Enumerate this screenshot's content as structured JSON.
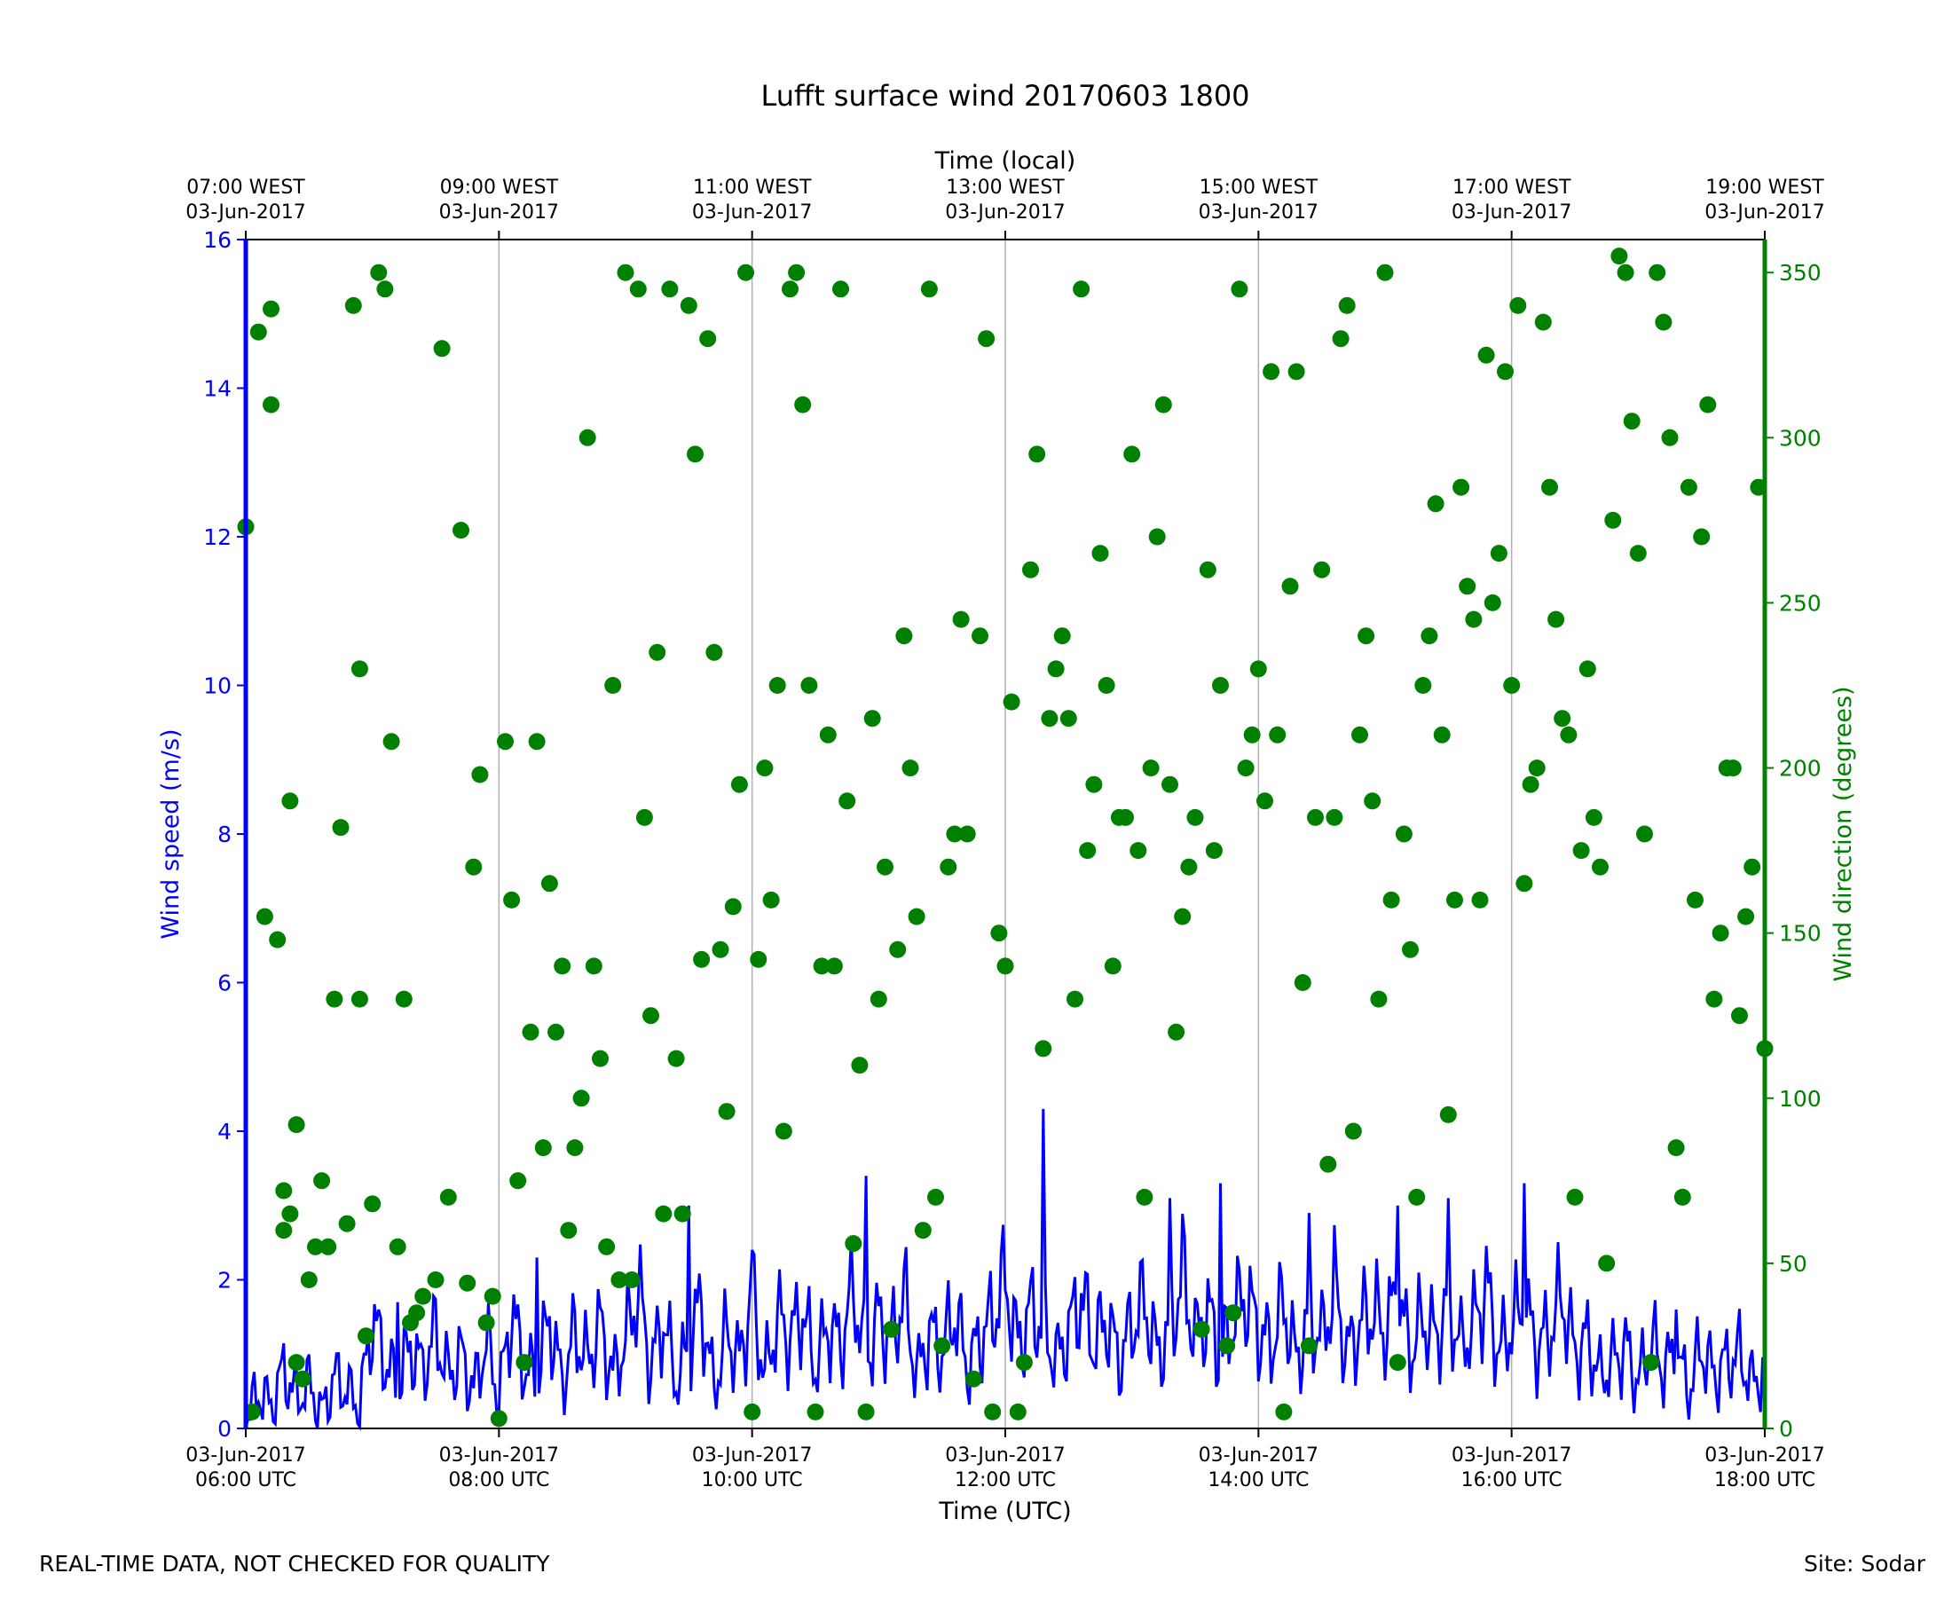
{
  "chart_data": {
    "type": "line+scatter",
    "title": "Lufft surface wind 20170603 1800",
    "xlabel_bottom": "Time (UTC)",
    "xlabel_top": "Time (local)",
    "ylabel_left": "Wind speed (m/s)",
    "ylabel_right": "Wind direction (degrees)",
    "xlim_hours_utc": [
      6.0,
      18.0
    ],
    "ylim_left": [
      0,
      16
    ],
    "ylim_right": [
      0,
      360
    ],
    "yticks_left": [
      0,
      2,
      4,
      6,
      8,
      10,
      12,
      14,
      16
    ],
    "yticks_right": [
      0,
      50,
      100,
      150,
      200,
      250,
      300,
      350
    ],
    "grid": "vertical at 2-hour ticks",
    "bottom_ticks": [
      {
        "hour": 6,
        "date": "03-Jun-2017",
        "time": "06:00 UTC"
      },
      {
        "hour": 8,
        "date": "03-Jun-2017",
        "time": "08:00 UTC"
      },
      {
        "hour": 10,
        "date": "03-Jun-2017",
        "time": "10:00 UTC"
      },
      {
        "hour": 12,
        "date": "03-Jun-2017",
        "time": "12:00 UTC"
      },
      {
        "hour": 14,
        "date": "03-Jun-2017",
        "time": "14:00 UTC"
      },
      {
        "hour": 16,
        "date": "03-Jun-2017",
        "time": "16:00 UTC"
      },
      {
        "hour": 18,
        "date": "03-Jun-2017",
        "time": "18:00 UTC"
      }
    ],
    "top_ticks": [
      {
        "hour": 6,
        "time": "07:00 WEST",
        "date": "03-Jun-2017"
      },
      {
        "hour": 8,
        "time": "09:00 WEST",
        "date": "03-Jun-2017"
      },
      {
        "hour": 10,
        "time": "11:00 WEST",
        "date": "03-Jun-2017"
      },
      {
        "hour": 12,
        "time": "13:00 WEST",
        "date": "03-Jun-2017"
      },
      {
        "hour": 14,
        "time": "15:00 WEST",
        "date": "03-Jun-2017"
      },
      {
        "hour": 16,
        "time": "17:00 WEST",
        "date": "03-Jun-2017"
      },
      {
        "hour": 18,
        "time": "19:00 WEST",
        "date": "03-Jun-2017"
      }
    ],
    "series": [
      {
        "kind": "line",
        "axis": "left",
        "color": "#0000ff",
        "x_hours_utc": [
          6.0,
          6.1,
          6.2,
          6.3,
          6.4,
          6.5,
          6.6,
          6.7,
          6.8,
          6.9,
          7.0,
          7.1,
          7.2,
          7.3,
          7.4,
          7.5,
          7.6,
          7.7,
          7.8,
          7.9,
          8.0,
          8.1,
          8.2,
          8.3,
          8.4,
          8.5,
          8.6,
          8.7,
          8.8,
          8.9,
          9.0,
          9.1,
          9.2,
          9.3,
          9.4,
          9.5,
          9.6,
          9.7,
          9.8,
          9.9,
          10.0,
          10.1,
          10.2,
          10.3,
          10.4,
          10.5,
          10.6,
          10.7,
          10.8,
          10.9,
          11.0,
          11.1,
          11.2,
          11.3,
          11.4,
          11.5,
          11.6,
          11.7,
          11.8,
          11.9,
          12.0,
          12.1,
          12.2,
          12.3,
          12.4,
          12.5,
          12.6,
          12.7,
          12.8,
          12.9,
          13.0,
          13.1,
          13.2,
          13.3,
          13.4,
          13.5,
          13.6,
          13.7,
          13.8,
          13.9,
          14.0,
          14.1,
          14.2,
          14.3,
          14.4,
          14.5,
          14.6,
          14.7,
          14.8,
          14.9,
          15.0,
          15.1,
          15.2,
          15.3,
          15.4,
          15.5,
          15.6,
          15.7,
          15.8,
          15.9,
          16.0,
          16.1,
          16.2,
          16.3,
          16.4,
          16.5,
          16.6,
          16.7,
          16.8,
          16.9,
          17.0,
          17.1,
          17.2,
          17.3,
          17.4,
          17.5,
          17.6,
          17.7,
          17.8,
          17.9,
          18.0
        ],
        "values": [
          0.1,
          0.5,
          0.3,
          0.8,
          0.4,
          0.6,
          0.2,
          0.7,
          0.5,
          0.3,
          1.5,
          0.9,
          0.6,
          1.1,
          0.8,
          1.3,
          0.7,
          1.0,
          0.5,
          1.2,
          0.4,
          1.6,
          0.8,
          0.7,
          1.5,
          0.6,
          1.3,
          0.9,
          1.4,
          0.7,
          1.2,
          1.9,
          0.8,
          1.5,
          0.6,
          1.1,
          1.7,
          0.5,
          1.3,
          0.9,
          1.8,
          0.7,
          1.5,
          1.2,
          1.6,
          0.8,
          1.4,
          1.1,
          1.9,
          0.9,
          1.5,
          1.2,
          1.8,
          0.7,
          1.3,
          1.0,
          1.6,
          0.8,
          1.2,
          1.5,
          2.0,
          1.1,
          1.6,
          1.4,
          0.9,
          1.3,
          1.8,
          1.1,
          1.5,
          0.9,
          1.4,
          1.7,
          1.0,
          1.3,
          2.1,
          1.2,
          1.6,
          0.9,
          1.5,
          1.8,
          1.3,
          1.1,
          1.7,
          0.9,
          1.5,
          1.2,
          1.9,
          1.0,
          1.4,
          1.6,
          1.3,
          1.8,
          1.0,
          1.5,
          1.2,
          1.7,
          1.1,
          1.4,
          1.9,
          1.0,
          1.4,
          1.6,
          1.1,
          1.3,
          1.8,
          1.0,
          1.2,
          0.7,
          0.9,
          1.1,
          0.6,
          1.2,
          0.8,
          1.0,
          0.5,
          1.1,
          0.7,
          0.9,
          1.0,
          0.6,
          0.8
        ],
        "peaks": [
          [
            7.2,
            1.7
          ],
          [
            8.3,
            2.3
          ],
          [
            9.5,
            3.0
          ],
          [
            10.0,
            2.4
          ],
          [
            10.9,
            3.4
          ],
          [
            12.3,
            4.3
          ],
          [
            13.3,
            3.1
          ],
          [
            13.7,
            3.3
          ],
          [
            14.4,
            2.9
          ],
          [
            15.1,
            3.0
          ],
          [
            15.5,
            3.1
          ],
          [
            16.1,
            3.3
          ],
          [
            17.3,
            1.6
          ]
        ]
      },
      {
        "kind": "scatter",
        "axis": "right",
        "color": "#008000",
        "x_hours_utc": [
          6.0,
          6.05,
          6.1,
          6.15,
          6.2,
          6.2,
          6.25,
          6.3,
          6.3,
          6.35,
          6.35,
          6.4,
          6.4,
          6.45,
          6.5,
          6.55,
          6.6,
          6.65,
          6.7,
          6.75,
          6.8,
          6.85,
          6.9,
          6.9,
          6.95,
          7.0,
          7.05,
          7.1,
          7.15,
          7.2,
          7.25,
          7.3,
          7.35,
          7.4,
          7.5,
          7.55,
          7.6,
          7.7,
          7.75,
          7.8,
          7.85,
          7.9,
          7.95,
          8.0,
          8.05,
          8.1,
          8.15,
          8.2,
          8.25,
          8.3,
          8.35,
          8.4,
          8.45,
          8.5,
          8.55,
          8.6,
          8.65,
          8.7,
          8.75,
          8.8,
          8.85,
          8.9,
          8.95,
          9.0,
          9.05,
          9.1,
          9.15,
          9.2,
          9.25,
          9.3,
          9.35,
          9.4,
          9.45,
          9.5,
          9.55,
          9.6,
          9.65,
          9.7,
          9.75,
          9.8,
          9.85,
          9.9,
          9.95,
          10.0,
          10.05,
          10.1,
          10.15,
          10.2,
          10.25,
          10.3,
          10.35,
          10.4,
          10.45,
          10.5,
          10.55,
          10.6,
          10.65,
          10.7,
          10.75,
          10.8,
          10.85,
          10.9,
          10.95,
          11.0,
          11.05,
          11.1,
          11.15,
          11.2,
          11.25,
          11.3,
          11.35,
          11.4,
          11.45,
          11.5,
          11.55,
          11.6,
          11.65,
          11.7,
          11.75,
          11.8,
          11.85,
          11.9,
          11.95,
          12.0,
          12.05,
          12.1,
          12.15,
          12.2,
          12.25,
          12.3,
          12.35,
          12.4,
          12.45,
          12.5,
          12.55,
          12.6,
          12.65,
          12.7,
          12.75,
          12.8,
          12.85,
          12.9,
          12.95,
          13.0,
          13.05,
          13.1,
          13.15,
          13.2,
          13.25,
          13.3,
          13.35,
          13.4,
          13.45,
          13.5,
          13.55,
          13.6,
          13.65,
          13.7,
          13.75,
          13.8,
          13.85,
          13.9,
          13.95,
          14.0,
          14.05,
          14.1,
          14.15,
          14.2,
          14.25,
          14.3,
          14.35,
          14.4,
          14.45,
          14.5,
          14.55,
          14.6,
          14.65,
          14.7,
          14.75,
          14.8,
          14.85,
          14.9,
          14.95,
          15.0,
          15.05,
          15.1,
          15.15,
          15.2,
          15.25,
          15.3,
          15.35,
          15.4,
          15.45,
          15.5,
          15.55,
          15.6,
          15.65,
          15.7,
          15.75,
          15.8,
          15.85,
          15.9,
          15.95,
          16.0,
          16.05,
          16.1,
          16.15,
          16.2,
          16.25,
          16.3,
          16.35,
          16.4,
          16.45,
          16.5,
          16.55,
          16.6,
          16.65,
          16.7,
          16.75,
          16.8,
          16.85,
          16.9,
          16.95,
          17.0,
          17.05,
          17.1,
          17.15,
          17.2,
          17.25,
          17.3,
          17.35,
          17.4,
          17.45,
          17.5,
          17.55,
          17.6,
          17.65,
          17.7,
          17.75,
          17.8,
          17.85,
          17.9,
          17.95,
          18.0
        ],
        "values": [
          273,
          5,
          332,
          155,
          310,
          339,
          148,
          72,
          60,
          190,
          65,
          92,
          20,
          15,
          45,
          55,
          75,
          55,
          130,
          182,
          62,
          340,
          130,
          230,
          28,
          68,
          350,
          345,
          208,
          55,
          130,
          32,
          35,
          40,
          45,
          327,
          70,
          272,
          44,
          170,
          198,
          32,
          40,
          3,
          208,
          160,
          75,
          20,
          120,
          208,
          85,
          165,
          120,
          140,
          60,
          85,
          100,
          300,
          140,
          112,
          55,
          225,
          45,
          350,
          45,
          345,
          185,
          125,
          235,
          65,
          345,
          112,
          65,
          340,
          295,
          142,
          330,
          235,
          145,
          96,
          158,
          195,
          350,
          5,
          142,
          200,
          160,
          225,
          90,
          345,
          350,
          310,
          225,
          5,
          140,
          210,
          140,
          345,
          190,
          56,
          110,
          5,
          215,
          130,
          170,
          30,
          145,
          240,
          200,
          155,
          60,
          345,
          70,
          25,
          170,
          180,
          245,
          180,
          15,
          240,
          330,
          5,
          150,
          140,
          220,
          5,
          20,
          260,
          295,
          115,
          215,
          230,
          240,
          215,
          130,
          345,
          175,
          195,
          265,
          225,
          140,
          185,
          185,
          295,
          175,
          70,
          200,
          270,
          310,
          195,
          120,
          155,
          170,
          185,
          30,
          260,
          175,
          225,
          25,
          35,
          345,
          200,
          210,
          230,
          190,
          320,
          210,
          5,
          255,
          320,
          135,
          25,
          185,
          260,
          80,
          185,
          330,
          340,
          90,
          210,
          240,
          190,
          130,
          350,
          160,
          20,
          180,
          145,
          70,
          225,
          240,
          280,
          210,
          95,
          160,
          285,
          255,
          245,
          160,
          325,
          250,
          265,
          320,
          225,
          340,
          165,
          195,
          200,
          335,
          285,
          245,
          215,
          210,
          70,
          175,
          230,
          185,
          170,
          50,
          275,
          355,
          350,
          305,
          265,
          180,
          20,
          350,
          335,
          300,
          85,
          70,
          285,
          160,
          270,
          310,
          130,
          150,
          200,
          200,
          125,
          155,
          170,
          285,
          115,
          225,
          65,
          330,
          190,
          340,
          120,
          190,
          55,
          155,
          130,
          330,
          160,
          5,
          20,
          275
        ]
      }
    ]
  },
  "footer": {
    "left": "REAL-TIME DATA, NOT CHECKED FOR QUALITY",
    "right": "Site: Sodar"
  }
}
